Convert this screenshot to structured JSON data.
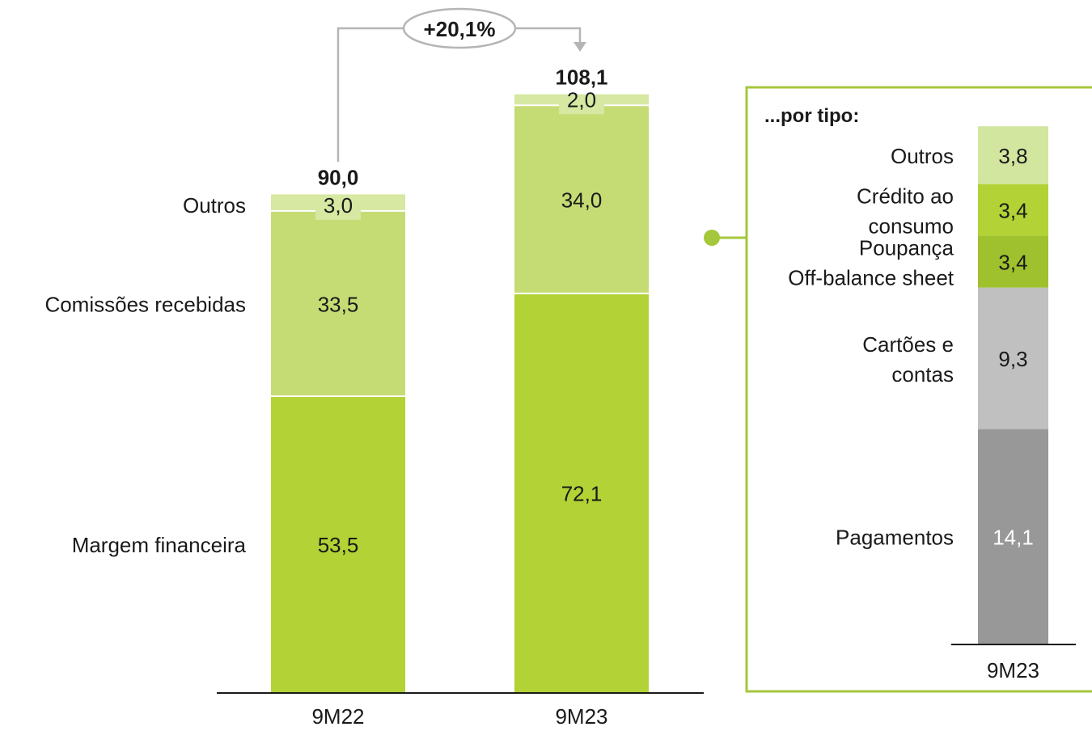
{
  "colors": {
    "margem": "#b2d235",
    "comissoes": "#c5dc74",
    "outros": "#d6e8a2",
    "panel_border": "#a5c73c",
    "outros_tipo": "#d3e6a0",
    "credito": "#b2d235",
    "poupanca": "#9fc12e",
    "cartoes": "#c0c0c0",
    "pagamentos": "#989898",
    "axis": "#1a1a1a",
    "arrow": "#b5b5b5"
  },
  "growth_label": "+20,1%",
  "chart_data": [
    {
      "type": "bar",
      "stacked": true,
      "categories": [
        "9M22",
        "9M23"
      ],
      "series": [
        {
          "name": "Margem financeira",
          "values": [
            53.5,
            72.1
          ],
          "labels": [
            "53,5",
            "72,1"
          ]
        },
        {
          "name": "Comissões recebidas",
          "values": [
            33.5,
            34.0
          ],
          "labels": [
            "33,5",
            "34,0"
          ]
        },
        {
          "name": "Outros",
          "values": [
            3.0,
            2.0
          ],
          "labels": [
            "3,0",
            "2,0"
          ]
        }
      ],
      "totals": [
        90.0,
        108.1
      ],
      "total_labels": [
        "90,0",
        "108,1"
      ]
    },
    {
      "type": "bar",
      "stacked": true,
      "title": "...por tipo:",
      "categories": [
        "9M23"
      ],
      "series": [
        {
          "name": "Pagamentos",
          "values": [
            14.1
          ],
          "labels": [
            "14,1"
          ]
        },
        {
          "name": "Cartões e contas",
          "values": [
            9.3
          ],
          "labels": [
            "9,3"
          ]
        },
        {
          "name": "Poupança Off-balance sheet",
          "values": [
            3.4
          ],
          "labels": [
            "3,4"
          ]
        },
        {
          "name": "Crédito ao consumo",
          "values": [
            3.4
          ],
          "labels": [
            "3,4"
          ]
        },
        {
          "name": "Outros",
          "values": [
            3.8
          ],
          "labels": [
            "3,8"
          ]
        }
      ]
    }
  ]
}
